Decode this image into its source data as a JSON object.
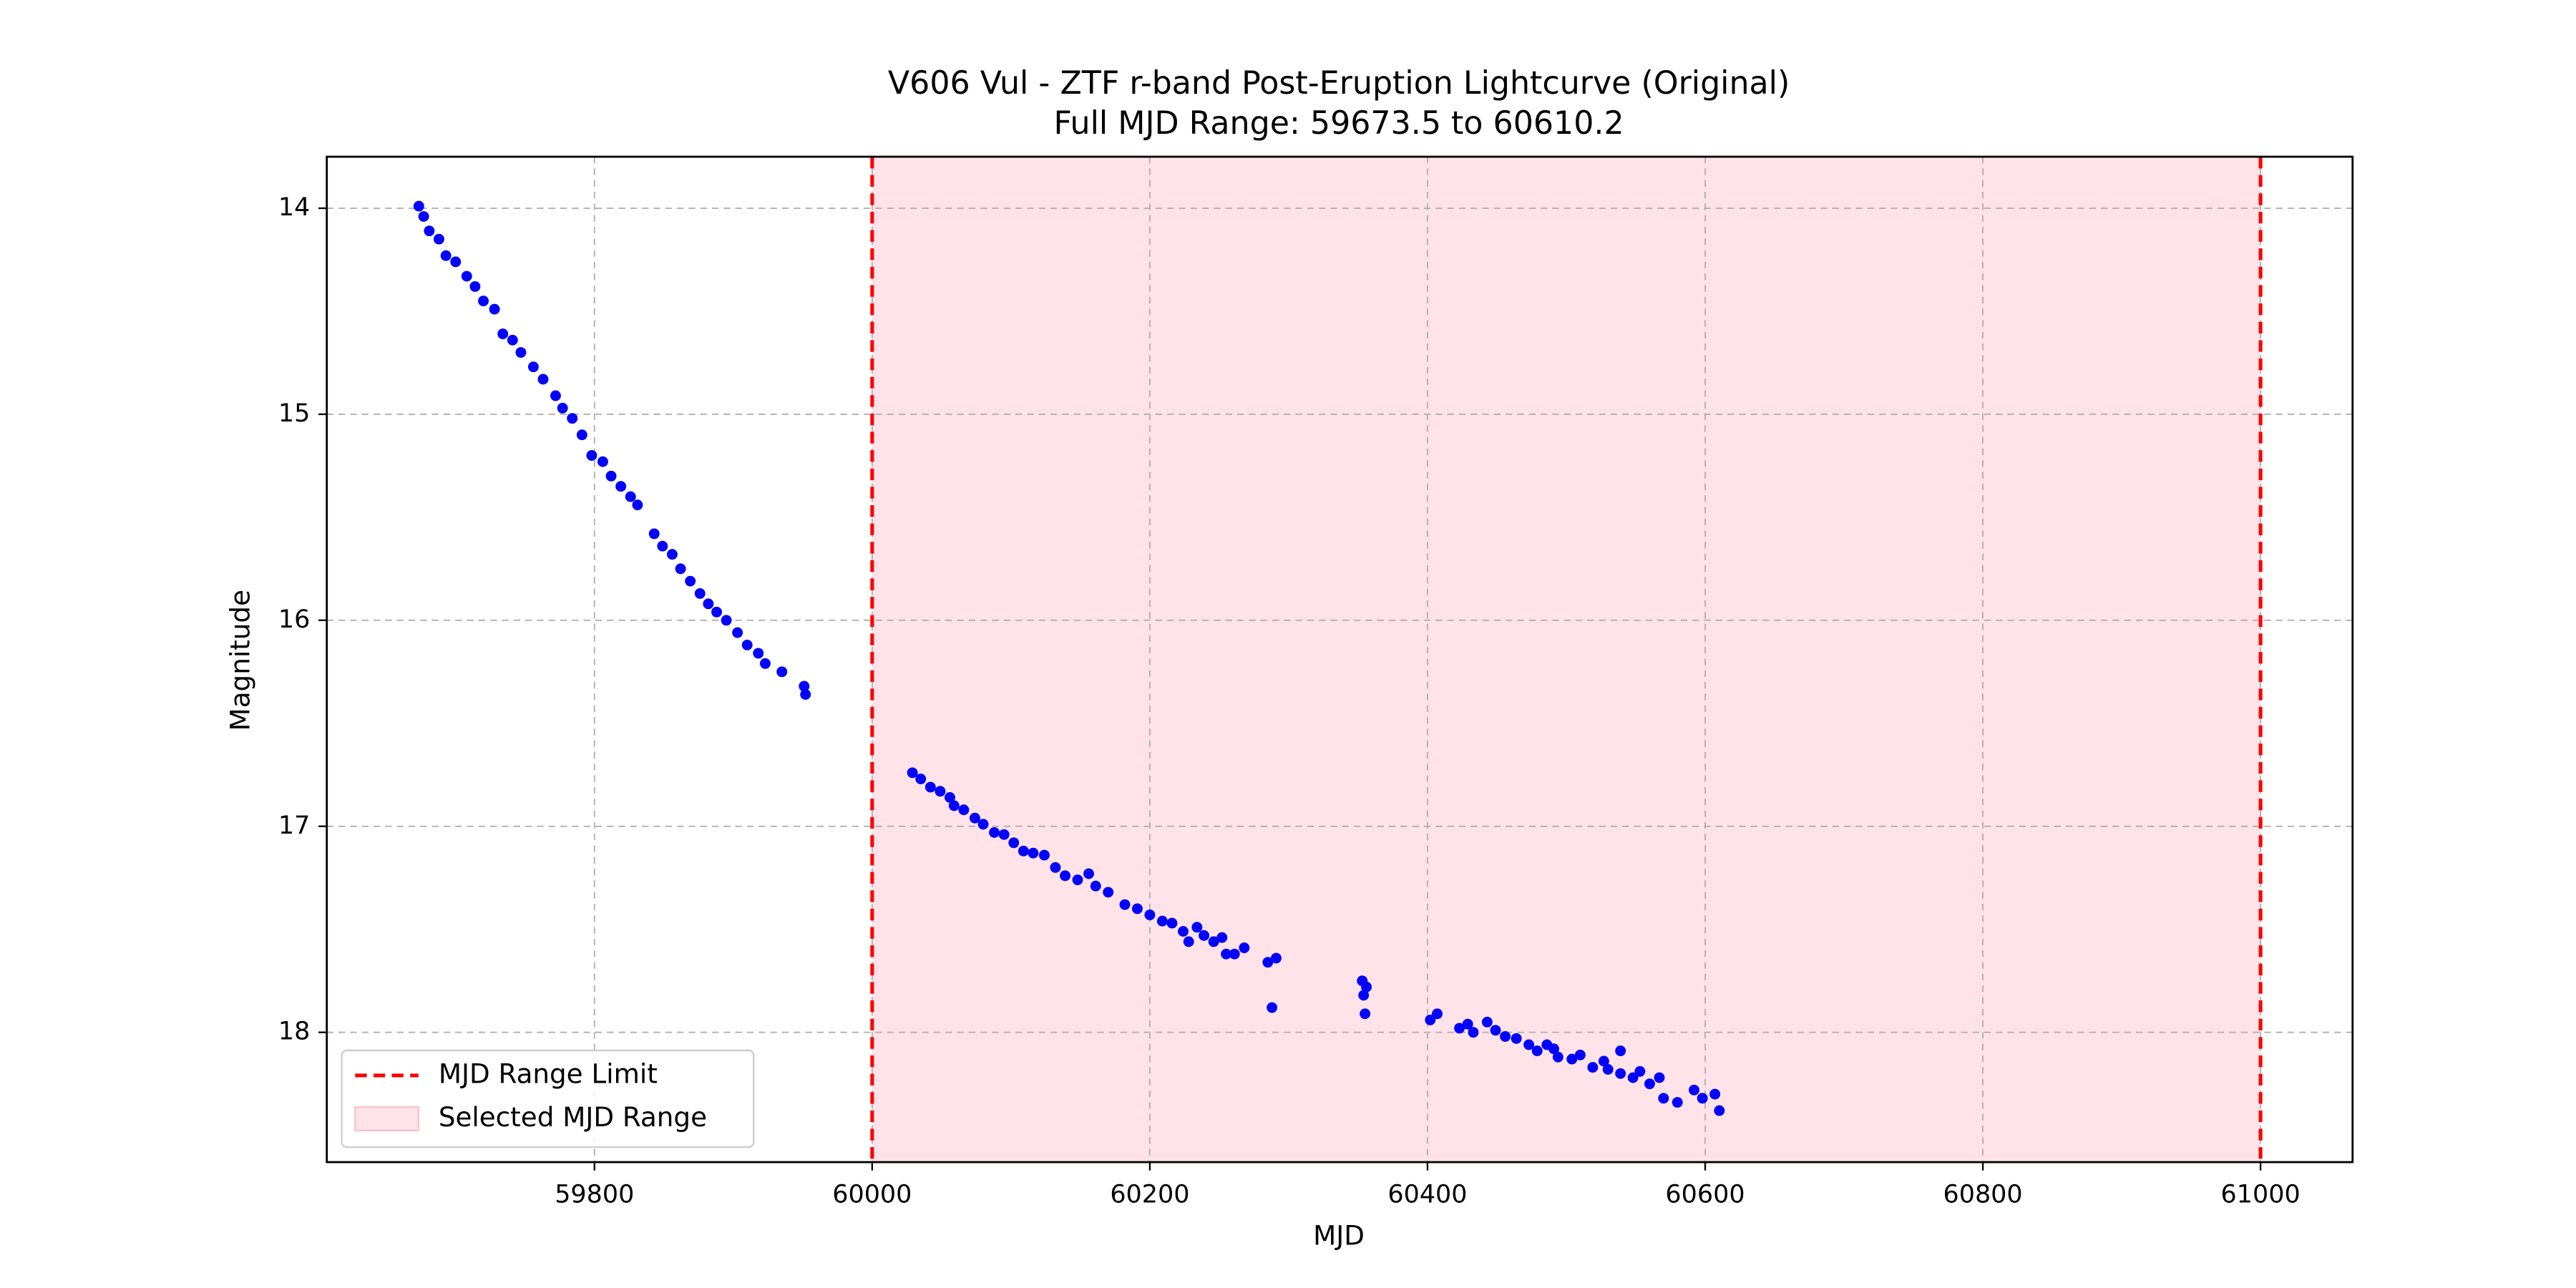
{
  "chart_data": {
    "type": "scatter",
    "title": "V606 Vul - ZTF r-band Post-Eruption Lightcurve (Original)",
    "subtitle": "Full MJD Range: 59673.5 to 60610.2",
    "x_label": "MJD",
    "y_label": "Magnitude",
    "xlim": [
      59607.2,
      61066.3
    ],
    "ylim": [
      13.75,
      18.63
    ],
    "y_inverted": true,
    "xticks": [
      59800,
      60000,
      60200,
      60400,
      60600,
      60800,
      61000
    ],
    "yticks": [
      14,
      15,
      16,
      17,
      18
    ],
    "grid": true,
    "legend": "lower left",
    "series": [
      {
        "color": "#0000ff",
        "x": [
          59673.5,
          59677,
          59681,
          59688,
          59693,
          59700,
          59708,
          59714,
          59720,
          59728,
          59734,
          59741,
          59747,
          59756,
          59763,
          59772,
          59777,
          59784,
          59791,
          59798,
          59806,
          59812,
          59819,
          59826,
          59831,
          59843,
          59849,
          59856,
          59862,
          59869,
          59876,
          59882,
          59888,
          59895,
          59903,
          59910,
          59918,
          59923,
          59935,
          59951,
          59952,
          60029,
          60035,
          60042,
          60049,
          60056,
          60059,
          60066,
          60074,
          60080,
          60088,
          60095,
          60102,
          60109,
          60116,
          60124,
          60132,
          60139,
          60148,
          60156,
          60161,
          60170,
          60182,
          60191,
          60200,
          60209,
          60216,
          60224,
          60228,
          60234,
          60239,
          60246,
          60252,
          60255,
          60261,
          60268,
          60285,
          60291,
          60288,
          60353,
          60354,
          60356,
          60355,
          60402,
          60407,
          60423,
          60429,
          60433,
          60443,
          60449,
          60456,
          60464,
          60473,
          60479,
          60486,
          60491,
          60494,
          60504,
          60510,
          60519,
          60527,
          60530,
          60539,
          60539,
          60548,
          60553,
          60560,
          60567,
          60570,
          60580,
          60592,
          60598,
          60607,
          60610.2
        ],
        "values": [
          13.99,
          14.04,
          14.11,
          14.15,
          14.23,
          14.26,
          14.33,
          14.38,
          14.45,
          14.49,
          14.61,
          14.64,
          14.7,
          14.77,
          14.83,
          14.91,
          14.97,
          15.02,
          15.1,
          15.2,
          15.23,
          15.3,
          15.35,
          15.4,
          15.44,
          15.58,
          15.64,
          15.68,
          15.75,
          15.81,
          15.87,
          15.92,
          15.96,
          16.0,
          16.06,
          16.12,
          16.16,
          16.21,
          16.25,
          16.32,
          16.36,
          16.74,
          16.77,
          16.81,
          16.83,
          16.86,
          16.9,
          16.92,
          16.96,
          16.99,
          17.03,
          17.04,
          17.08,
          17.12,
          17.13,
          17.14,
          17.2,
          17.24,
          17.26,
          17.23,
          17.29,
          17.32,
          17.38,
          17.4,
          17.43,
          17.46,
          17.47,
          17.51,
          17.56,
          17.49,
          17.53,
          17.56,
          17.54,
          17.62,
          17.62,
          17.59,
          17.66,
          17.64,
          17.88,
          17.75,
          17.82,
          17.78,
          17.91,
          17.94,
          17.91,
          17.98,
          17.96,
          18.0,
          17.95,
          17.99,
          18.02,
          18.03,
          18.06,
          18.09,
          18.06,
          18.08,
          18.12,
          18.13,
          18.11,
          18.17,
          18.14,
          18.18,
          18.2,
          18.09,
          18.22,
          18.19,
          18.25,
          18.22,
          18.32,
          18.34,
          18.28,
          18.32,
          18.3,
          18.38
        ]
      }
    ],
    "vlines": {
      "name": "MJD Range Limit",
      "color": "#ff0000",
      "x": [
        60000,
        61000
      ]
    },
    "span": {
      "name": "Selected MJD Range",
      "color": "#ffc0cb",
      "x": [
        60000,
        61000
      ]
    }
  }
}
